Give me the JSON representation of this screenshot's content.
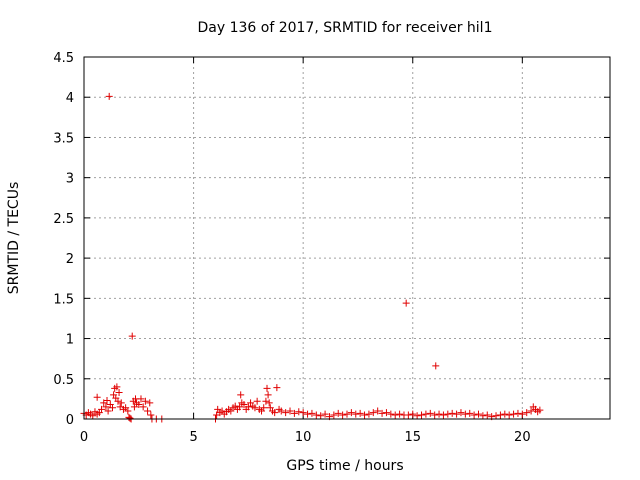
{
  "chart_data": {
    "type": "scatter",
    "title": "Day 136 of 2017, SRMTID for receiver hil1",
    "xlabel": "GPS time / hours",
    "ylabel": "SRMTID / TECUs",
    "xlim": [
      0,
      24
    ],
    "ylim": [
      0,
      4.5
    ],
    "xticks": [
      0,
      5,
      10,
      15,
      20
    ],
    "yticks": [
      0,
      0.5,
      1,
      1.5,
      2,
      2.5,
      3,
      3.5,
      4,
      4.5
    ],
    "xtick_labels": [
      "0",
      "5",
      "10",
      "15",
      "20"
    ],
    "ytick_labels": [
      "0",
      "0.5",
      "1",
      "1.5",
      "2",
      "2.5",
      "3",
      "3.5",
      "4",
      "4.5"
    ],
    "grid": true,
    "marker": "+",
    "color": "#e00000",
    "series": [
      {
        "name": "hil1",
        "points": [
          [
            0.0,
            0.07
          ],
          [
            0.1,
            0.05
          ],
          [
            0.2,
            0.08
          ],
          [
            0.3,
            0.06
          ],
          [
            0.4,
            0.04
          ],
          [
            0.5,
            0.09
          ],
          [
            0.6,
            0.06
          ],
          [
            0.7,
            0.08
          ],
          [
            0.6,
            0.27
          ],
          [
            0.8,
            0.12
          ],
          [
            0.9,
            0.2
          ],
          [
            1.0,
            0.15
          ],
          [
            1.05,
            0.23
          ],
          [
            1.1,
            0.1
          ],
          [
            1.15,
            4.01
          ],
          [
            1.2,
            0.18
          ],
          [
            1.3,
            0.14
          ],
          [
            1.35,
            0.3
          ],
          [
            1.4,
            0.38
          ],
          [
            1.45,
            0.26
          ],
          [
            1.5,
            0.4
          ],
          [
            1.55,
            0.22
          ],
          [
            1.6,
            0.33
          ],
          [
            1.65,
            0.15
          ],
          [
            1.7,
            0.2
          ],
          [
            1.8,
            0.12
          ],
          [
            1.9,
            0.14
          ],
          [
            2.0,
            0.1
          ],
          [
            2.05,
            0.02
          ],
          [
            2.1,
            0.01
          ],
          [
            2.15,
            0.0
          ],
          [
            2.2,
            1.03
          ],
          [
            2.25,
            0.22
          ],
          [
            2.3,
            0.15
          ],
          [
            2.35,
            0.25
          ],
          [
            2.4,
            0.2
          ],
          [
            2.5,
            0.18
          ],
          [
            2.6,
            0.25
          ],
          [
            2.7,
            0.15
          ],
          [
            2.8,
            0.22
          ],
          [
            2.9,
            0.1
          ],
          [
            3.0,
            0.2
          ],
          [
            3.05,
            0.05
          ],
          [
            3.1,
            0.0
          ],
          [
            3.3,
            0.0
          ],
          [
            3.55,
            0.0
          ],
          [
            6.0,
            0.0
          ],
          [
            6.05,
            0.05
          ],
          [
            6.1,
            0.12
          ],
          [
            6.2,
            0.08
          ],
          [
            6.3,
            0.1
          ],
          [
            6.4,
            0.06
          ],
          [
            6.5,
            0.09
          ],
          [
            6.6,
            0.12
          ],
          [
            6.7,
            0.1
          ],
          [
            6.8,
            0.14
          ],
          [
            6.9,
            0.16
          ],
          [
            7.0,
            0.12
          ],
          [
            7.1,
            0.15
          ],
          [
            7.15,
            0.3
          ],
          [
            7.2,
            0.2
          ],
          [
            7.3,
            0.18
          ],
          [
            7.4,
            0.12
          ],
          [
            7.5,
            0.15
          ],
          [
            7.6,
            0.2
          ],
          [
            7.7,
            0.16
          ],
          [
            7.8,
            0.14
          ],
          [
            7.9,
            0.22
          ],
          [
            8.0,
            0.12
          ],
          [
            8.1,
            0.1
          ],
          [
            8.2,
            0.14
          ],
          [
            8.3,
            0.22
          ],
          [
            8.35,
            0.38
          ],
          [
            8.4,
            0.3
          ],
          [
            8.45,
            0.2
          ],
          [
            8.5,
            0.14
          ],
          [
            8.6,
            0.1
          ],
          [
            8.7,
            0.08
          ],
          [
            8.8,
            0.39
          ],
          [
            8.9,
            0.12
          ],
          [
            9.0,
            0.1
          ],
          [
            9.2,
            0.08
          ],
          [
            9.4,
            0.1
          ],
          [
            9.6,
            0.07
          ],
          [
            9.8,
            0.09
          ],
          [
            10.0,
            0.08
          ],
          [
            10.2,
            0.06
          ],
          [
            10.4,
            0.07
          ],
          [
            10.6,
            0.05
          ],
          [
            10.8,
            0.04
          ],
          [
            11.0,
            0.06
          ],
          [
            11.2,
            0.03
          ],
          [
            11.4,
            0.05
          ],
          [
            11.6,
            0.07
          ],
          [
            11.8,
            0.05
          ],
          [
            12.0,
            0.06
          ],
          [
            12.2,
            0.08
          ],
          [
            12.4,
            0.06
          ],
          [
            12.6,
            0.07
          ],
          [
            12.8,
            0.05
          ],
          [
            13.0,
            0.06
          ],
          [
            13.2,
            0.08
          ],
          [
            13.4,
            0.1
          ],
          [
            13.6,
            0.07
          ],
          [
            13.8,
            0.08
          ],
          [
            14.0,
            0.06
          ],
          [
            14.2,
            0.05
          ],
          [
            14.4,
            0.06
          ],
          [
            14.6,
            0.05
          ],
          [
            14.7,
            1.44
          ],
          [
            14.8,
            0.05
          ],
          [
            15.0,
            0.06
          ],
          [
            15.2,
            0.04
          ],
          [
            15.4,
            0.05
          ],
          [
            15.6,
            0.06
          ],
          [
            15.8,
            0.07
          ],
          [
            16.0,
            0.05
          ],
          [
            16.05,
            0.66
          ],
          [
            16.2,
            0.06
          ],
          [
            16.4,
            0.05
          ],
          [
            16.6,
            0.06
          ],
          [
            16.8,
            0.07
          ],
          [
            17.0,
            0.06
          ],
          [
            17.2,
            0.08
          ],
          [
            17.4,
            0.06
          ],
          [
            17.6,
            0.07
          ],
          [
            17.8,
            0.05
          ],
          [
            18.0,
            0.06
          ],
          [
            18.2,
            0.04
          ],
          [
            18.4,
            0.05
          ],
          [
            18.6,
            0.03
          ],
          [
            18.8,
            0.04
          ],
          [
            19.0,
            0.05
          ],
          [
            19.2,
            0.06
          ],
          [
            19.4,
            0.05
          ],
          [
            19.6,
            0.06
          ],
          [
            19.8,
            0.07
          ],
          [
            20.0,
            0.06
          ],
          [
            20.2,
            0.08
          ],
          [
            20.4,
            0.1
          ],
          [
            20.5,
            0.15
          ],
          [
            20.6,
            0.12
          ],
          [
            20.7,
            0.09
          ],
          [
            20.8,
            0.11
          ]
        ]
      }
    ]
  }
}
